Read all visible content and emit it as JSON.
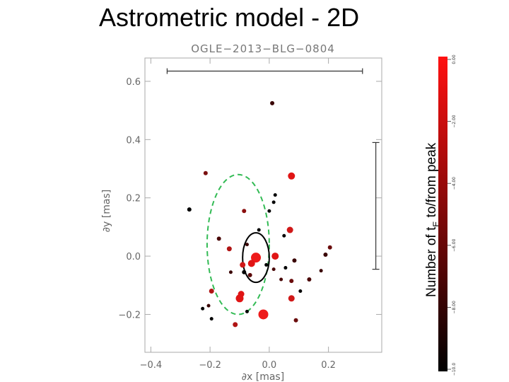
{
  "slide": {
    "title": "Astrometric model - 2D",
    "colorbar_label_main": "Number of t",
    "colorbar_label_sub": "E",
    "colorbar_label_tail": " to/from peak"
  },
  "chart_data": {
    "type": "scatter",
    "title": "OGLE−2013−BLG−0804",
    "xlabel": "∂x [mas]",
    "ylabel": "∂y [mas]",
    "xlim": [
      -0.42,
      0.38
    ],
    "ylim": [
      -0.33,
      0.68
    ],
    "xticks": [
      -0.4,
      -0.2,
      0.0,
      0.2
    ],
    "xtick_labels": [
      "−0.4",
      "−0.2",
      "0.0",
      "0.2"
    ],
    "yticks": [
      -0.2,
      0.0,
      0.2,
      0.4,
      0.6
    ],
    "ytick_labels": [
      "−0.2",
      "0.0",
      "0.2",
      "0.4",
      "0.6"
    ],
    "points": [
      {
        "x": 0.01,
        "y": 0.525,
        "c": "#3a0505",
        "s": 3
      },
      {
        "x": -0.215,
        "y": 0.285,
        "c": "#7a1010",
        "s": 3
      },
      {
        "x": 0.075,
        "y": 0.275,
        "c": "#e01515",
        "s": 5
      },
      {
        "x": -0.27,
        "y": 0.16,
        "c": "#000000",
        "s": 3
      },
      {
        "x": 0.02,
        "y": 0.21,
        "c": "#000000",
        "s": 2.5
      },
      {
        "x": 0.015,
        "y": 0.185,
        "c": "#000000",
        "s": 2.5
      },
      {
        "x": -0.085,
        "y": 0.155,
        "c": "#8b0f0f",
        "s": 3
      },
      {
        "x": 0.0,
        "y": 0.155,
        "c": "#000000",
        "s": 2.5
      },
      {
        "x": 0.07,
        "y": 0.09,
        "c": "#d01818",
        "s": 4.5
      },
      {
        "x": -0.035,
        "y": 0.09,
        "c": "#000000",
        "s": 2.5
      },
      {
        "x": 0.05,
        "y": 0.07,
        "c": "#000000",
        "s": 2.5
      },
      {
        "x": -0.17,
        "y": 0.06,
        "c": "#4a0808",
        "s": 3
      },
      {
        "x": -0.135,
        "y": 0.025,
        "c": "#b01414",
        "s": 3.5
      },
      {
        "x": -0.075,
        "y": 0.04,
        "c": "#3a0505",
        "s": 2.5
      },
      {
        "x": -0.045,
        "y": -0.005,
        "c": "#ee1a1a",
        "s": 7
      },
      {
        "x": -0.06,
        "y": -0.025,
        "c": "#e01515",
        "s": 5
      },
      {
        "x": 0.02,
        "y": 0.0,
        "c": "#e01515",
        "s": 5
      },
      {
        "x": 0.085,
        "y": -0.015,
        "c": "#3a0505",
        "s": 3
      },
      {
        "x": 0.205,
        "y": 0.03,
        "c": "#6a0c0c",
        "s": 3
      },
      {
        "x": 0.19,
        "y": 0.005,
        "c": "#3a0505",
        "s": 3
      },
      {
        "x": -0.09,
        "y": -0.03,
        "c": "#d01818",
        "s": 4
      },
      {
        "x": -0.01,
        "y": -0.03,
        "c": "#000000",
        "s": 2.5
      },
      {
        "x": 0.015,
        "y": -0.045,
        "c": "#4a0808",
        "s": 2.5
      },
      {
        "x": 0.055,
        "y": -0.04,
        "c": "#000000",
        "s": 2.5
      },
      {
        "x": -0.13,
        "y": -0.055,
        "c": "#3a0505",
        "s": 2.5
      },
      {
        "x": -0.085,
        "y": -0.055,
        "c": "#000000",
        "s": 3
      },
      {
        "x": -0.065,
        "y": -0.065,
        "c": "#5a0a0a",
        "s": 3
      },
      {
        "x": 0.175,
        "y": -0.05,
        "c": "#3a0505",
        "s": 2.5
      },
      {
        "x": 0.04,
        "y": -0.08,
        "c": "#4a0808",
        "s": 2.5
      },
      {
        "x": 0.075,
        "y": -0.085,
        "c": "#6a0c0c",
        "s": 3
      },
      {
        "x": 0.135,
        "y": -0.08,
        "c": "#4a0808",
        "s": 3
      },
      {
        "x": -0.195,
        "y": -0.12,
        "c": "#b01414",
        "s": 3.5
      },
      {
        "x": 0.105,
        "y": -0.12,
        "c": "#000000",
        "s": 2.5
      },
      {
        "x": -0.095,
        "y": -0.13,
        "c": "#e01515",
        "s": 4.5
      },
      {
        "x": -0.1,
        "y": -0.145,
        "c": "#e01515",
        "s": 5.5
      },
      {
        "x": 0.075,
        "y": -0.145,
        "c": "#d01818",
        "s": 4.5
      },
      {
        "x": -0.225,
        "y": -0.18,
        "c": "#000000",
        "s": 2.5
      },
      {
        "x": -0.205,
        "y": -0.17,
        "c": "#3a0505",
        "s": 2.5
      },
      {
        "x": -0.075,
        "y": -0.19,
        "c": "#000000",
        "s": 2.5
      },
      {
        "x": -0.02,
        "y": -0.2,
        "c": "#ee1a1a",
        "s": 7
      },
      {
        "x": 0.09,
        "y": -0.22,
        "c": "#6a0c0c",
        "s": 3
      },
      {
        "x": -0.195,
        "y": -0.215,
        "c": "#000000",
        "s": 2.5
      },
      {
        "x": -0.115,
        "y": -0.235,
        "c": "#b01414",
        "s": 3.5
      }
    ],
    "inner_ellipse": {
      "cx": -0.045,
      "cy": -0.005,
      "rx": 0.045,
      "ry": 0.085,
      "color": "#000000"
    },
    "outer_ellipse": {
      "cx": -0.105,
      "cy": 0.04,
      "rx": 0.105,
      "ry": 0.24,
      "color": "#33bb55",
      "dashed": true
    },
    "scale_bar_x": {
      "x1": -0.345,
      "x2": 0.315,
      "y": 0.635
    },
    "scale_bar_y": {
      "x": 0.36,
      "y1": -0.045,
      "y2": 0.39
    },
    "colorbar": {
      "top_color": "#ff1111",
      "bottom_color": "#000000",
      "tick_labels": [
        "0.00",
        "−2.00",
        "−4.00",
        "−6.00",
        "−8.00",
        "−10.0"
      ]
    }
  }
}
